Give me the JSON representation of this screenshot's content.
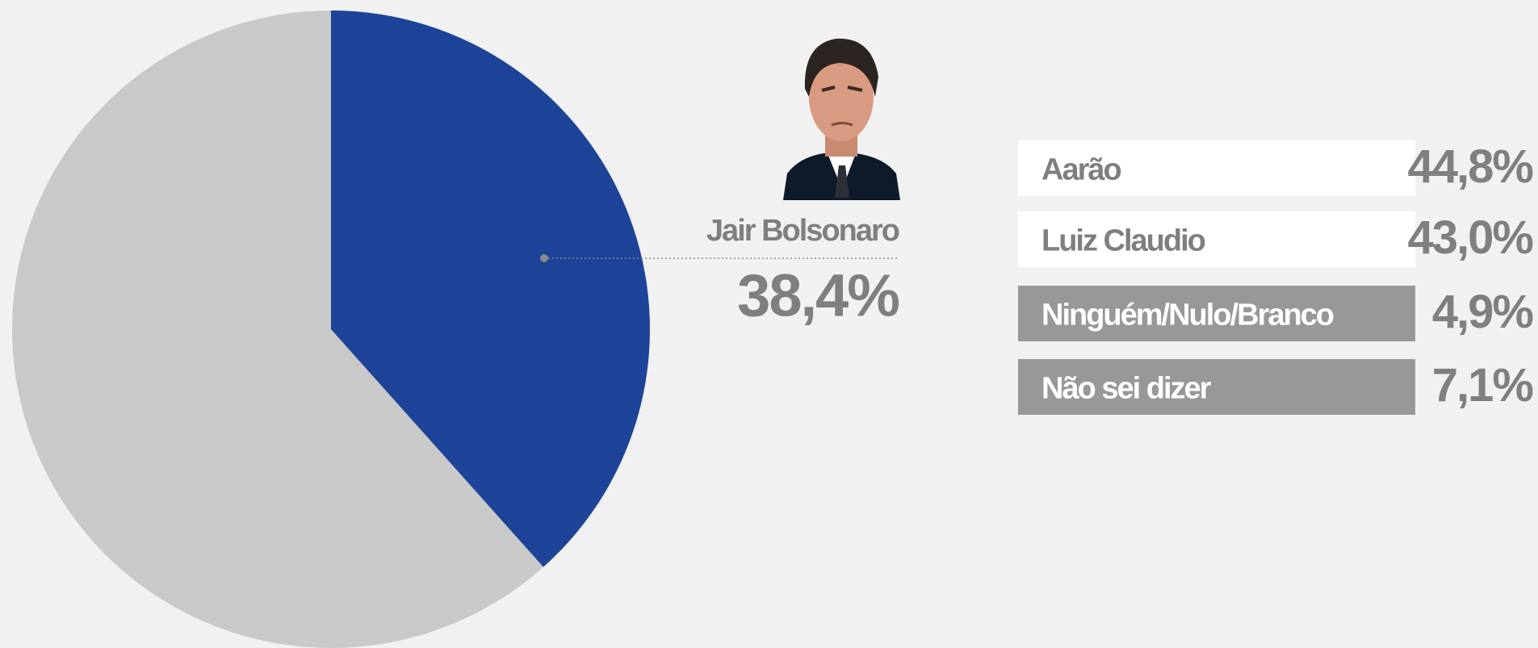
{
  "chart_data": [
    {
      "type": "pie",
      "categories": [
        "Jair Bolsonaro"
      ],
      "values": [
        38.4
      ],
      "value_labels": [
        "38,4%"
      ],
      "color": "#1d4499",
      "rest_color": "#c9c9c9"
    },
    {
      "type": "list",
      "categories": [
        "Aarão",
        "Luiz Claudio",
        "Ninguém/Nulo/Branco",
        "Não sei dizer"
      ],
      "values": [
        44.8,
        43.0,
        4.9,
        7.1
      ],
      "value_labels": [
        "44,8%",
        "43,0%",
        "4,9%",
        "7,1%"
      ],
      "colors": [
        "#ffffff",
        "#ffffff",
        "#989898",
        "#989898"
      ]
    }
  ]
}
